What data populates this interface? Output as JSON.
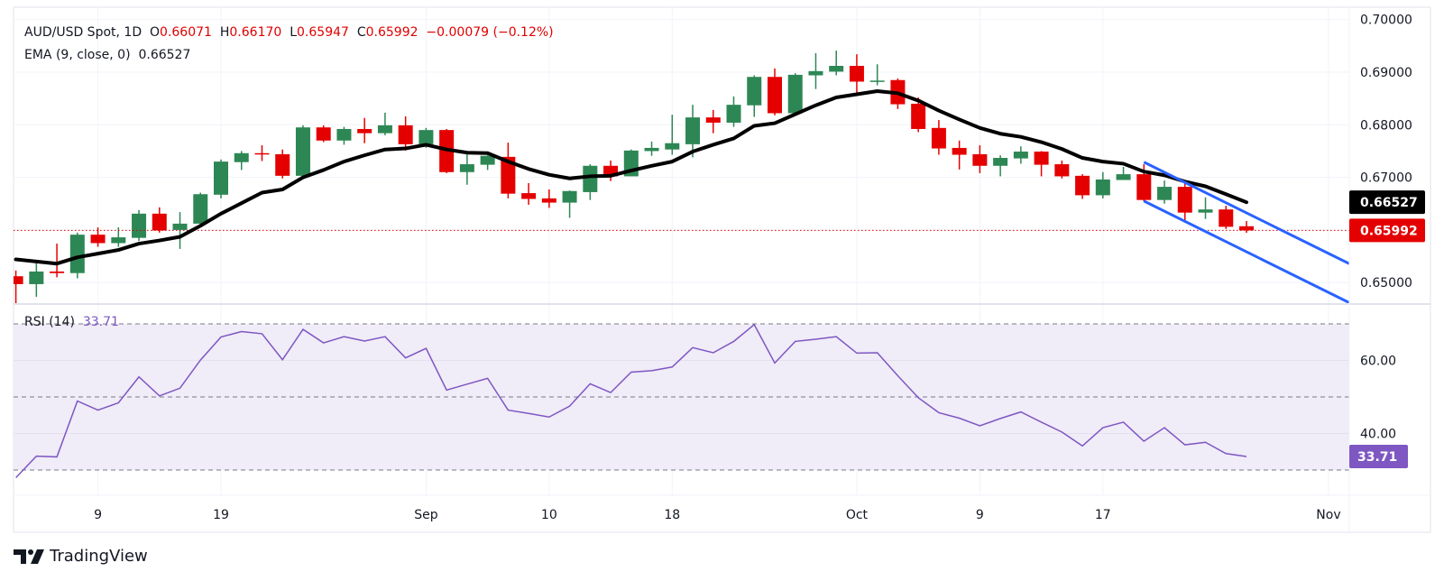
{
  "header": {
    "symbol": "AUD/USD Spot, 1D",
    "o_label": "O",
    "o_value": "0.66071",
    "h_label": "H",
    "h_value": "0.66170",
    "l_label": "L",
    "l_value": "0.65947",
    "c_label": "C",
    "c_value": "0.65992",
    "change": "−0.00079 (−0.12%)",
    "ema_label": "EMA (9, close, 0)",
    "ema_value": "0.66527",
    "rsi_label": "RSI (14)",
    "rsi_value": "33.71"
  },
  "branding": {
    "name": "TradingView"
  },
  "colors": {
    "up": "#2d8754",
    "down": "#e50000",
    "ema": "#000000",
    "channel": "#2962ff",
    "rsi": "#7e57c2",
    "rsi_band": "#f0ecf8",
    "grid": "#f0f3fa"
  },
  "chart_data": {
    "type": "candlestick",
    "title": "AUD/USD Spot, 1D",
    "price_axis": {
      "ticks": [
        "0.70000",
        "0.69000",
        "0.68000",
        "0.67000",
        "0.65000"
      ],
      "tick_values": [
        0.7,
        0.69,
        0.68,
        0.67,
        0.65
      ],
      "ylim": [
        0.6455,
        0.7005
      ]
    },
    "last_price_badge": {
      "label": "0.65992",
      "value": 0.65992
    },
    "ema_badge": {
      "label": "0.66527",
      "value": 0.66527
    },
    "x_ticks": [
      {
        "label": "9",
        "bar": 4
      },
      {
        "label": "19",
        "bar": 10
      },
      {
        "label": "Sep",
        "bar": 20
      },
      {
        "label": "10",
        "bar": 26
      },
      {
        "label": "18",
        "bar": 32
      },
      {
        "label": "Oct",
        "bar": 41
      },
      {
        "label": "9",
        "bar": 47
      },
      {
        "label": "17",
        "bar": 53
      },
      {
        "label": "Nov",
        "bar": 64
      }
    ],
    "ohlc": [
      [
        0.6512,
        0.6523,
        0.6459,
        0.6497
      ],
      [
        0.6497,
        0.6542,
        0.6473,
        0.6521
      ],
      [
        0.6521,
        0.6574,
        0.651,
        0.6518
      ],
      [
        0.6518,
        0.6595,
        0.6508,
        0.6591
      ],
      [
        0.6591,
        0.6605,
        0.6568,
        0.6575
      ],
      [
        0.6575,
        0.6605,
        0.6568,
        0.6586
      ],
      [
        0.6585,
        0.6638,
        0.6579,
        0.6631
      ],
      [
        0.6631,
        0.6643,
        0.6595,
        0.6599
      ],
      [
        0.66,
        0.6634,
        0.6564,
        0.6612
      ],
      [
        0.6612,
        0.6671,
        0.6608,
        0.6668
      ],
      [
        0.6667,
        0.6734,
        0.666,
        0.673
      ],
      [
        0.6729,
        0.675,
        0.6714,
        0.6746
      ],
      [
        0.6746,
        0.6761,
        0.6731,
        0.6744
      ],
      [
        0.6744,
        0.6753,
        0.6698,
        0.6703
      ],
      [
        0.6703,
        0.6799,
        0.6701,
        0.6795
      ],
      [
        0.6795,
        0.6799,
        0.6767,
        0.677
      ],
      [
        0.677,
        0.6796,
        0.6762,
        0.6792
      ],
      [
        0.6792,
        0.6813,
        0.6765,
        0.6784
      ],
      [
        0.6784,
        0.6823,
        0.678,
        0.6799
      ],
      [
        0.6799,
        0.6816,
        0.6751,
        0.6763
      ],
      [
        0.6763,
        0.6794,
        0.6756,
        0.679
      ],
      [
        0.679,
        0.6792,
        0.6708,
        0.671
      ],
      [
        0.671,
        0.675,
        0.6686,
        0.6725
      ],
      [
        0.6724,
        0.6742,
        0.6714,
        0.6741
      ],
      [
        0.6739,
        0.6766,
        0.666,
        0.6669
      ],
      [
        0.667,
        0.6689,
        0.6648,
        0.6659
      ],
      [
        0.666,
        0.6677,
        0.6642,
        0.6652
      ],
      [
        0.6652,
        0.6675,
        0.6623,
        0.6674
      ],
      [
        0.6672,
        0.6725,
        0.6657,
        0.6722
      ],
      [
        0.6722,
        0.6732,
        0.6693,
        0.6702
      ],
      [
        0.6702,
        0.6753,
        0.6702,
        0.6751
      ],
      [
        0.675,
        0.6768,
        0.6741,
        0.6756
      ],
      [
        0.6753,
        0.6819,
        0.6743,
        0.6765
      ],
      [
        0.6763,
        0.6838,
        0.6738,
        0.6814
      ],
      [
        0.6814,
        0.6828,
        0.6784,
        0.6804
      ],
      [
        0.6804,
        0.6854,
        0.6796,
        0.6838
      ],
      [
        0.6837,
        0.6894,
        0.6815,
        0.6891
      ],
      [
        0.6891,
        0.6907,
        0.6818,
        0.6822
      ],
      [
        0.6822,
        0.6898,
        0.6818,
        0.6895
      ],
      [
        0.6894,
        0.6936,
        0.6868,
        0.6902
      ],
      [
        0.6901,
        0.6941,
        0.6894,
        0.6912
      ],
      [
        0.6912,
        0.6934,
        0.6856,
        0.6882
      ],
      [
        0.6882,
        0.6915,
        0.6875,
        0.6884
      ],
      [
        0.6885,
        0.6888,
        0.683,
        0.6839
      ],
      [
        0.684,
        0.6852,
        0.6786,
        0.6792
      ],
      [
        0.6794,
        0.6809,
        0.6743,
        0.6755
      ],
      [
        0.6756,
        0.677,
        0.6715,
        0.6743
      ],
      [
        0.6744,
        0.6761,
        0.6708,
        0.6722
      ],
      [
        0.6722,
        0.6742,
        0.6702,
        0.6737
      ],
      [
        0.6736,
        0.6759,
        0.6726,
        0.6749
      ],
      [
        0.6749,
        0.675,
        0.6702,
        0.6724
      ],
      [
        0.6725,
        0.6732,
        0.6698,
        0.6702
      ],
      [
        0.6703,
        0.6706,
        0.6659,
        0.6666
      ],
      [
        0.6666,
        0.671,
        0.666,
        0.6696
      ],
      [
        0.6695,
        0.672,
        0.6695,
        0.6706
      ],
      [
        0.6706,
        0.6725,
        0.6654,
        0.6657
      ],
      [
        0.6657,
        0.6694,
        0.665,
        0.6682
      ],
      [
        0.6682,
        0.6692,
        0.6614,
        0.6633
      ],
      [
        0.6633,
        0.6662,
        0.6621,
        0.6639
      ],
      [
        0.6639,
        0.6646,
        0.6602,
        0.6606
      ],
      [
        0.66071,
        0.6617,
        0.65947,
        0.65992
      ]
    ],
    "ema9": [
      0.6544,
      0.654,
      0.6536,
      0.6548,
      0.6555,
      0.6562,
      0.6574,
      0.658,
      0.6587,
      0.6608,
      0.6631,
      0.6651,
      0.6671,
      0.6677,
      0.67,
      0.6714,
      0.673,
      0.6742,
      0.6753,
      0.6755,
      0.6762,
      0.6753,
      0.6747,
      0.6746,
      0.673,
      0.6716,
      0.6705,
      0.6698,
      0.6702,
      0.6703,
      0.6713,
      0.6722,
      0.673,
      0.6749,
      0.6762,
      0.6774,
      0.6798,
      0.6803,
      0.682,
      0.6837,
      0.6852,
      0.6858,
      0.6864,
      0.686,
      0.6846,
      0.6827,
      0.681,
      0.6794,
      0.6783,
      0.6777,
      0.6767,
      0.6754,
      0.6737,
      0.673,
      0.6726,
      0.6711,
      0.6704,
      0.6692,
      0.6683,
      0.6668,
      0.66527
    ],
    "channel": {
      "upper": [
        [
          55,
          0.6729
        ],
        [
          65,
          0.6536
        ]
      ],
      "lower": [
        [
          55,
          0.6655
        ],
        [
          65,
          0.6462
        ]
      ]
    },
    "rsi": {
      "period": 14,
      "levels": [
        70,
        50,
        30
      ],
      "axis_ticks": [
        "60.00",
        "40.00"
      ],
      "tick_values": [
        60,
        40
      ],
      "badge": {
        "label": "33.71",
        "value": 33.71
      },
      "values": [
        27.9,
        33.8,
        33.6,
        48.9,
        46.4,
        48.4,
        55.5,
        50.3,
        52.4,
        60.1,
        66.4,
        67.9,
        67.3,
        60.2,
        68.5,
        64.8,
        66.5,
        65.3,
        66.5,
        60.7,
        63.3,
        51.9,
        53.5,
        55.1,
        46.4,
        45.5,
        44.5,
        47.5,
        53.6,
        51.2,
        56.8,
        57.2,
        58.2,
        63.5,
        62.1,
        65.2,
        69.8,
        59.3,
        65.2,
        65.8,
        66.5,
        62.0,
        62.1,
        55.8,
        49.8,
        45.7,
        44.2,
        42.1,
        44.1,
        45.9,
        43.1,
        40.4,
        36.6,
        41.6,
        43.1,
        37.9,
        41.6,
        36.9,
        37.6,
        34.5,
        33.71
      ]
    }
  }
}
